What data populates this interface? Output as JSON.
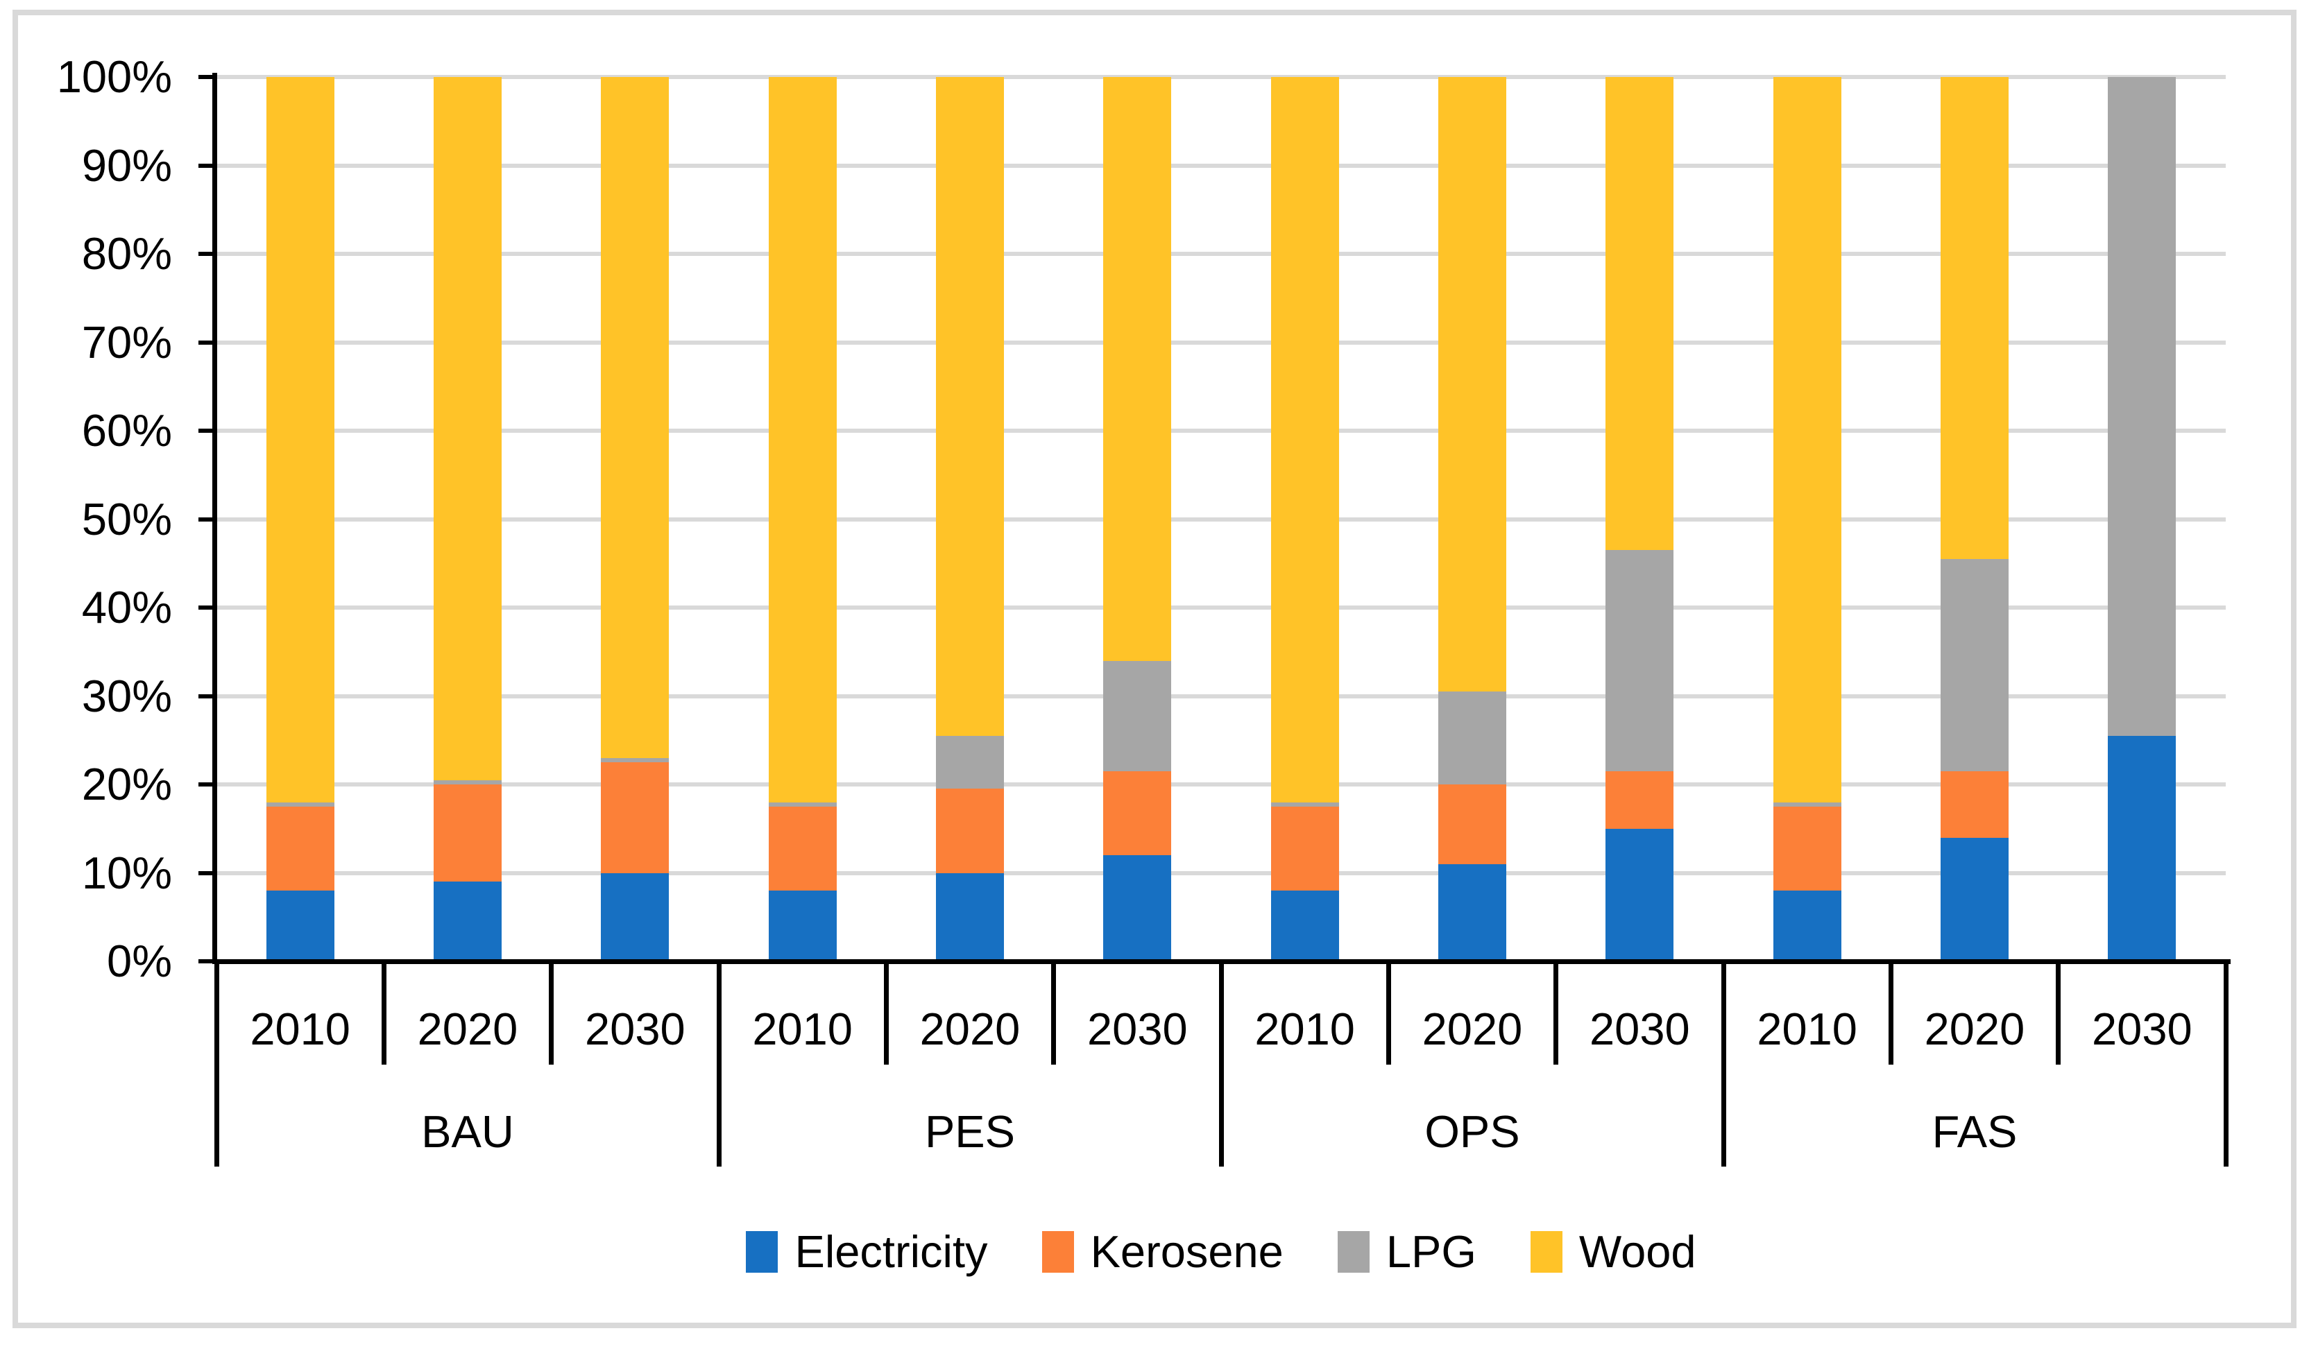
{
  "figure": {
    "background": "#FFFFFF",
    "border_color": "#D9D9D9"
  },
  "colors": {
    "axis": "#000000",
    "gridline": "#D9D9D9",
    "text": "#000000"
  },
  "chart_data": {
    "type": "bar",
    "stacked": true,
    "units": "percent",
    "title": "",
    "xlabel": "",
    "ylabel": "",
    "ylim": [
      0,
      100
    ],
    "grid": true,
    "legend_position": "bottom",
    "groups": [
      "BAU",
      "PES",
      "OPS",
      "FAS"
    ],
    "years": [
      "2010",
      "2020",
      "2030"
    ],
    "categories": [
      "BAU 2010",
      "BAU 2020",
      "BAU 2030",
      "PES 2010",
      "PES 2020",
      "PES 2030",
      "OPS 2010",
      "OPS 2020",
      "OPS 2030",
      "FAS 2010",
      "FAS 2020",
      "FAS 2030"
    ],
    "y_ticks": [
      "100%",
      "90%",
      "80%",
      "70%",
      "60%",
      "50%",
      "40%",
      "30%",
      "20%",
      "10%",
      "0%"
    ],
    "series": [
      {
        "name": "Electricity",
        "color": "#1770C2",
        "values": [
          8,
          9,
          10,
          8,
          10,
          12,
          8,
          11,
          15,
          8,
          14,
          25.5
        ]
      },
      {
        "name": "Kerosene",
        "color": "#FC8038",
        "values": [
          9.5,
          11,
          12.5,
          9.5,
          9.5,
          9.5,
          9.5,
          9,
          6.5,
          9.5,
          7.5,
          0
        ]
      },
      {
        "name": "LPG",
        "color": "#A6A6A6",
        "values": [
          0.5,
          0.5,
          0.5,
          0.5,
          6,
          12.5,
          0.5,
          10.5,
          25,
          0.5,
          24,
          74.5
        ]
      },
      {
        "name": "Wood",
        "color": "#FFC328",
        "values": [
          82,
          79.5,
          77,
          82,
          74.5,
          66,
          82,
          69.5,
          53.5,
          82,
          54.5,
          0
        ]
      }
    ]
  }
}
